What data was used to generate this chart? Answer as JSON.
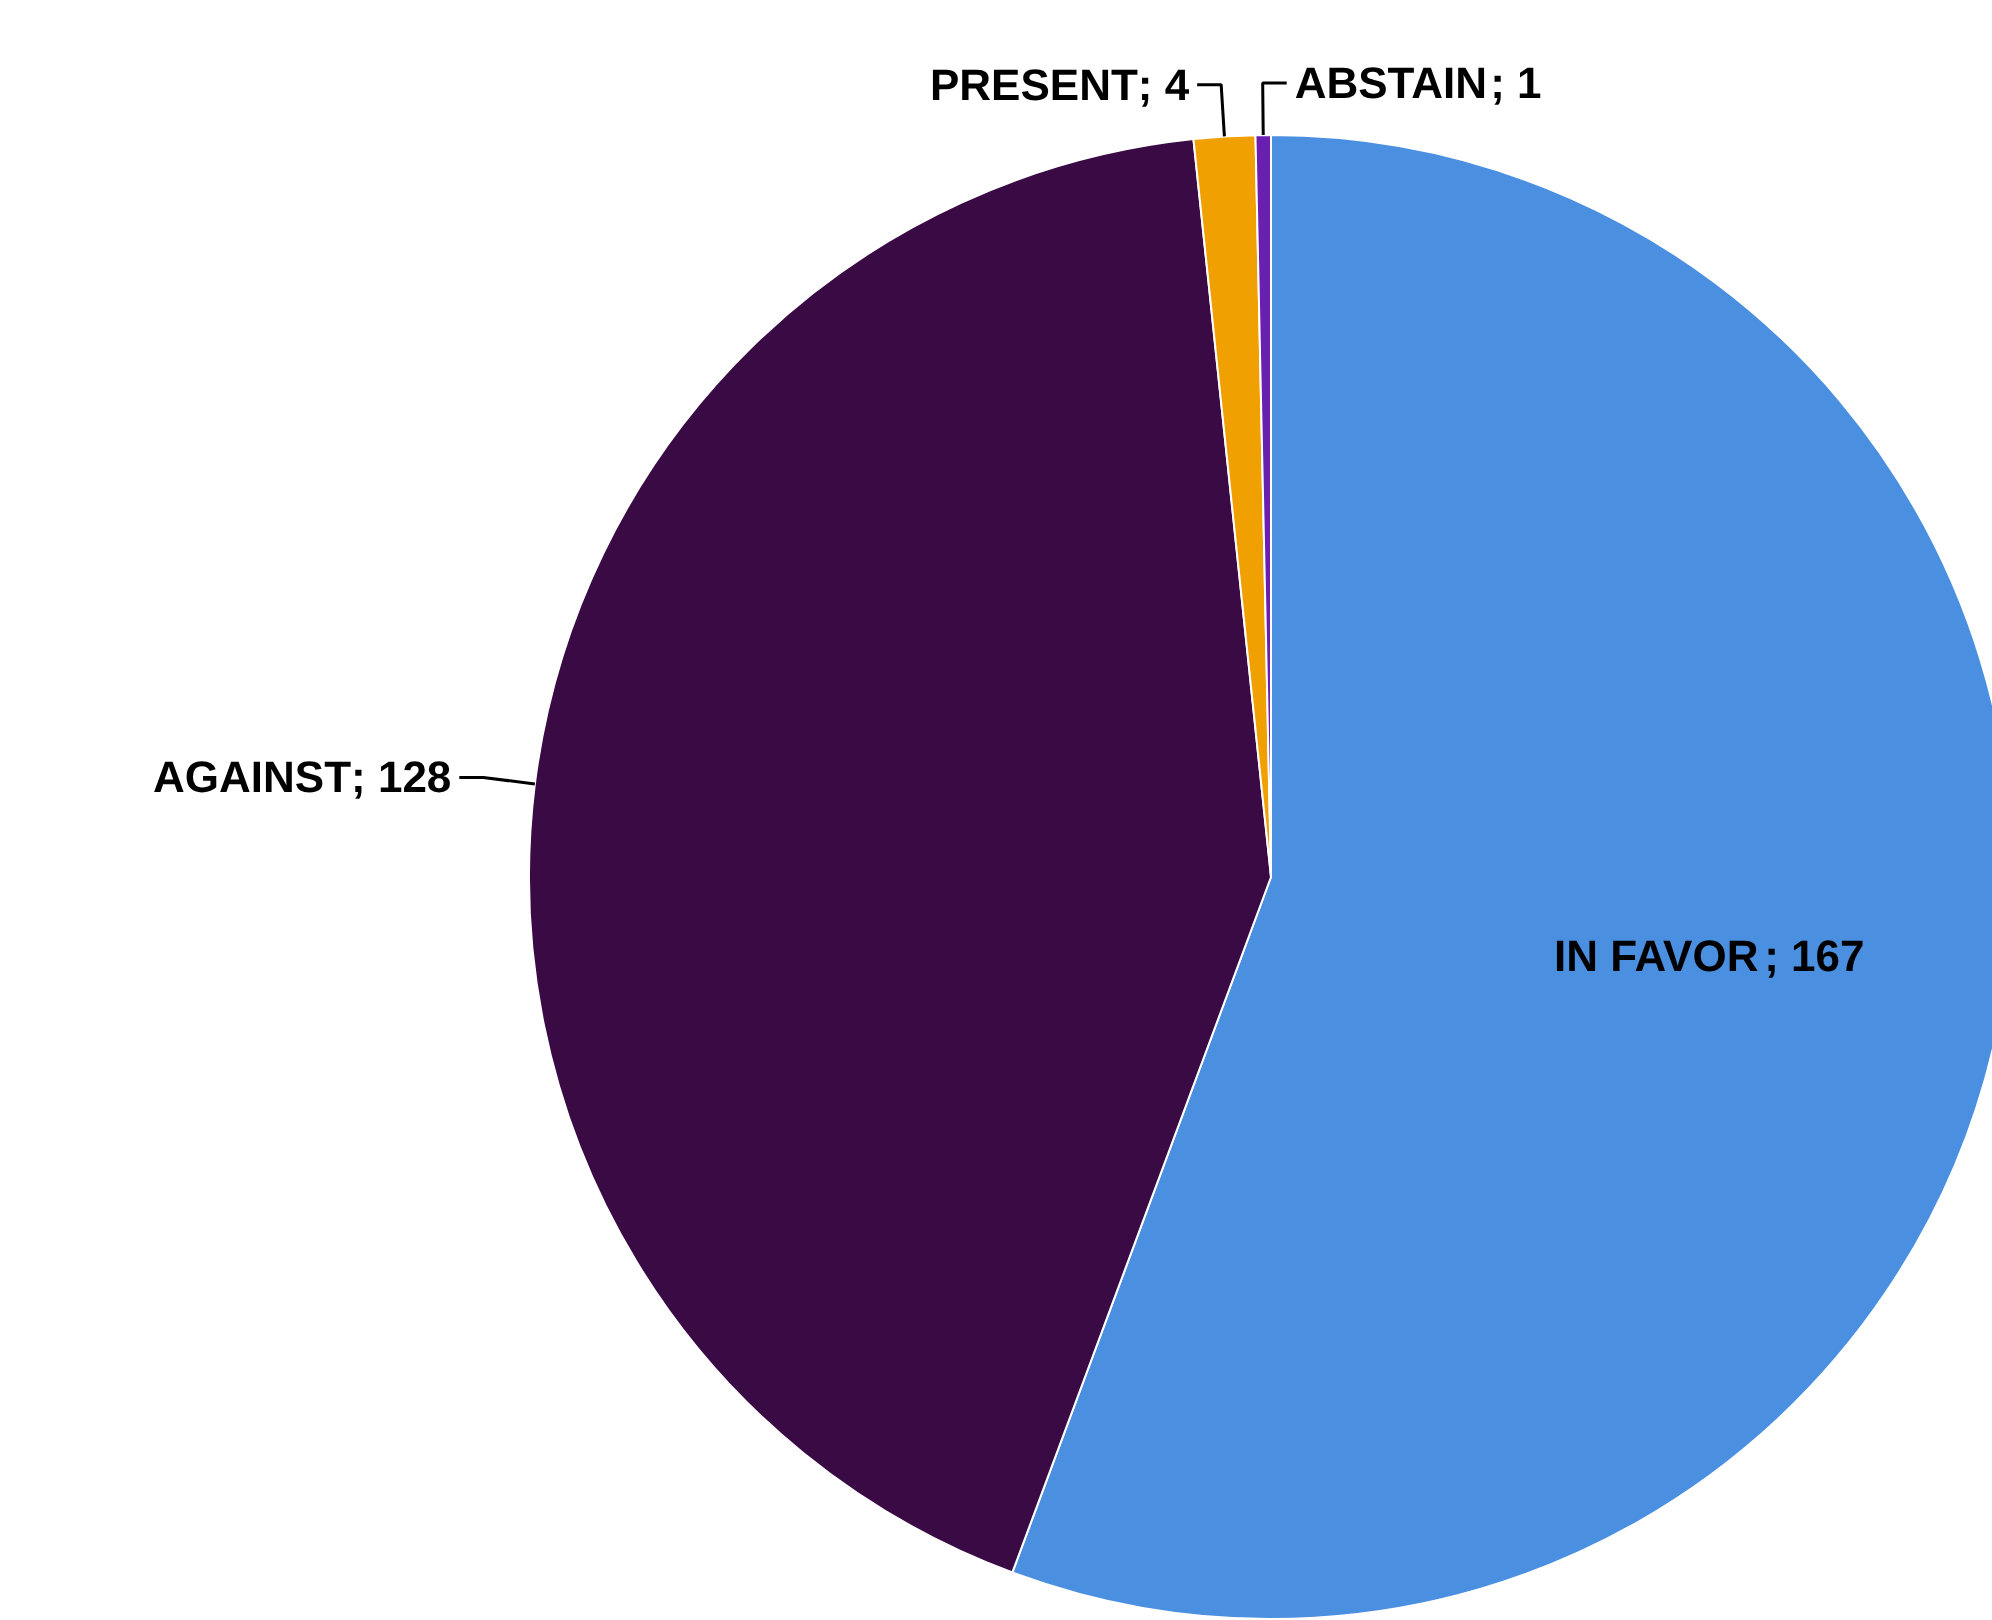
{
  "chart_data": {
    "type": "pie",
    "categories": [
      "IN FAVOR",
      "AGAINST",
      "PRESENT",
      "ABSTAIN"
    ],
    "values": [
      167,
      128,
      4,
      1
    ],
    "colors": [
      "#4a8fe0",
      "#3a0a45",
      "#f0a000",
      "#6a1fb0"
    ],
    "value_labels": [
      "; 167",
      "; 128",
      "; 4",
      "; 1"
    ]
  }
}
